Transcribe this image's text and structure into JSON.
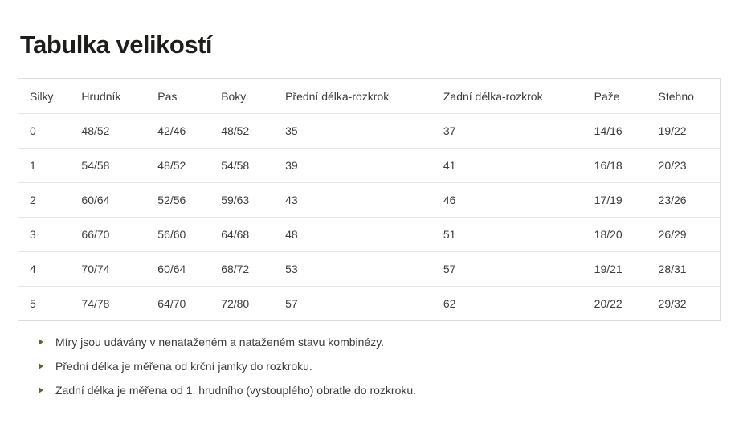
{
  "page": {
    "title": "Tabulka velikostí"
  },
  "table": {
    "headers": [
      "Silky",
      "Hrudník",
      "Pas",
      "Boky",
      "Přední délka-rozkrok",
      "Zadní délka-rozkrok",
      "Paže",
      "Stehno"
    ],
    "rows": [
      [
        "0",
        "48/52",
        "42/46",
        "48/52",
        "35",
        "37",
        "14/16",
        "19/22"
      ],
      [
        "1",
        "54/58",
        "48/52",
        "54/58",
        "39",
        "41",
        "16/18",
        "20/23"
      ],
      [
        "2",
        "60/64",
        "52/56",
        "59/63",
        "43",
        "46",
        "17/19",
        "23/26"
      ],
      [
        "3",
        "66/70",
        "56/60",
        "64/68",
        "48",
        "51",
        "18/20",
        "26/29"
      ],
      [
        "4",
        "70/74",
        "60/64",
        "68/72",
        "53",
        "57",
        "19/21",
        "28/31"
      ],
      [
        "5",
        "74/78",
        "64/70",
        "72/80",
        "57",
        "62",
        "20/22",
        "29/32"
      ]
    ]
  },
  "notes": {
    "bullet_icon": "triangle-right-icon",
    "items": [
      "Míry jsou udávány v nenataženém a nataženém stavu kombinézy.",
      "Přední délka je měřena od krční jamky do rozkroku.",
      "Zadní délka je měřena od 1. hrudního (vystouplého) obratle do rozkroku."
    ]
  },
  "colors": {
    "title": "#1d1d1b",
    "text": "#3c3c3c",
    "table_border": "#dcdcdc",
    "row_separator": "#e6e6e6",
    "bullet": "#6f5e2c",
    "background": "#ffffff"
  }
}
